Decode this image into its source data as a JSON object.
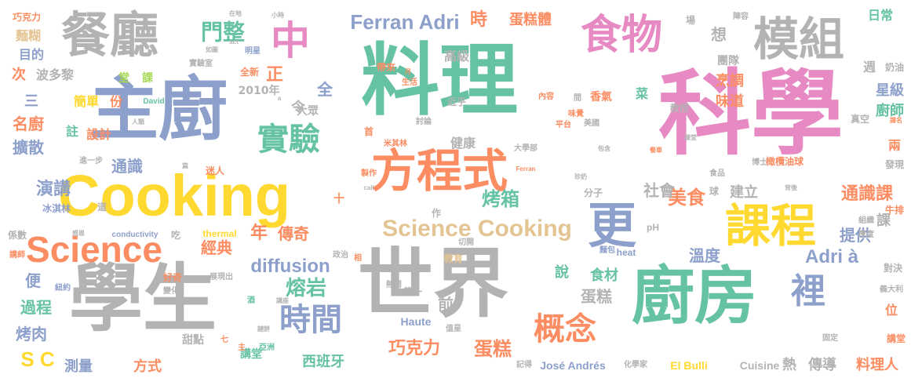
{
  "palette": {
    "green": "#66c2a5",
    "orange": "#fc8d62",
    "blue": "#8da0cb",
    "pink": "#e78ac3",
    "lime": "#a6d854",
    "yellow": "#ffd92f",
    "tan": "#e5c494",
    "gray": "#b3b3b3"
  },
  "words": [
    {
      "text": "料理",
      "color": "#66c2a5",
      "size": 100,
      "weight": 10
    },
    {
      "text": "科學",
      "color": "#e78ac3",
      "size": 118,
      "weight": 10
    },
    {
      "text": "主廚",
      "color": "#8da0cb",
      "size": 88,
      "weight": 9
    },
    {
      "text": "世界",
      "color": "#b3b3b3",
      "size": 96,
      "weight": 9
    },
    {
      "text": "學生",
      "color": "#b3b3b3",
      "size": 94,
      "weight": 9
    },
    {
      "text": "Cooking",
      "color": "#ffd92f",
      "size": 74,
      "weight": 8
    },
    {
      "text": "廚房",
      "color": "#66c2a5",
      "size": 80,
      "weight": 8
    },
    {
      "text": "餐廳",
      "color": "#b3b3b3",
      "size": 62,
      "weight": 7
    },
    {
      "text": "模組",
      "color": "#b3b3b3",
      "size": 58,
      "weight": 7
    },
    {
      "text": "方程式",
      "color": "#fc8d62",
      "size": 58,
      "weight": 7
    },
    {
      "text": "課程",
      "color": "#ffd92f",
      "size": 58,
      "weight": 7
    },
    {
      "text": "食物",
      "color": "#e78ac3",
      "size": 52,
      "weight": 6
    },
    {
      "text": "更",
      "color": "#8da0cb",
      "size": 62,
      "weight": 6
    },
    {
      "text": "中",
      "color": "#e78ac3",
      "size": 50,
      "weight": 6
    },
    {
      "text": "Science",
      "color": "#fc8d62",
      "size": 46,
      "weight": 6
    },
    {
      "text": "實驗",
      "color": "#66c2a5",
      "size": 40,
      "weight": 5
    },
    {
      "text": "時間",
      "color": "#8da0cb",
      "size": 40,
      "weight": 5
    },
    {
      "text": "概念",
      "color": "#fc8d62",
      "size": 40,
      "weight": 5
    },
    {
      "text": "裡",
      "color": "#8da0cb",
      "size": 44,
      "weight": 5
    },
    {
      "text": "Ferran Adri",
      "color": "#8da0cb",
      "size": 26,
      "weight": 4
    },
    {
      "text": "Science Cooking",
      "color": "#e5c494",
      "size": 30,
      "weight": 4
    },
    {
      "text": "門",
      "color": "#66c2a5",
      "size": 28,
      "weight": 4
    },
    {
      "text": "整",
      "color": "#66c2a5",
      "size": 28,
      "weight": 4
    },
    {
      "text": "烤箱",
      "color": "#66c2a5",
      "size": 24,
      "weight": 3
    },
    {
      "text": "diffusion",
      "color": "#8da0cb",
      "size": 24,
      "weight": 3
    },
    {
      "text": "熔岩",
      "color": "#66c2a5",
      "size": 26,
      "weight": 3
    },
    {
      "text": "巧克力",
      "color": "#fc8d62",
      "size": 22,
      "weight": 3
    },
    {
      "text": "蛋糕",
      "color": "#fc8d62",
      "size": 24,
      "weight": 3
    },
    {
      "text": "美食",
      "color": "#fc8d62",
      "size": 24,
      "weight": 3
    },
    {
      "text": "Adri à",
      "color": "#8da0cb",
      "size": 24,
      "weight": 3
    },
    {
      "text": "S C",
      "color": "#ffd92f",
      "size": 26,
      "weight": 3
    },
    {
      "text": "通識課",
      "color": "#fc8d62",
      "size": 22,
      "weight": 3
    },
    {
      "text": "時",
      "color": "#fc8d62",
      "size": 22,
      "weight": 3
    },
    {
      "text": "蛋糕體",
      "color": "#fc8d62",
      "size": 18,
      "weight": 2
    },
    {
      "text": "演講",
      "color": "#8da0cb",
      "size": 22,
      "weight": 2
    },
    {
      "text": "通識",
      "color": "#8da0cb",
      "size": 20,
      "weight": 2
    },
    {
      "text": "社會",
      "color": "#b3b3b3",
      "size": 20,
      "weight": 2
    },
    {
      "text": "年",
      "color": "#fc8d62",
      "size": 22,
      "weight": 2
    },
    {
      "text": "傳奇",
      "color": "#fc8d62",
      "size": 20,
      "weight": 2
    },
    {
      "text": "經典",
      "color": "#fc8d62",
      "size": 20,
      "weight": 2
    },
    {
      "text": "溫度",
      "color": "#8da0cb",
      "size": 20,
      "weight": 2
    },
    {
      "text": "提供",
      "color": "#8da0cb",
      "size": 20,
      "weight": 2
    },
    {
      "text": "食材",
      "color": "#66c2a5",
      "size": 18,
      "weight": 2
    },
    {
      "text": "說",
      "color": "#66c2a5",
      "size": 18,
      "weight": 2
    },
    {
      "text": "蛋糕",
      "color": "#b3b3b3",
      "size": 20,
      "weight": 2
    },
    {
      "text": "前",
      "color": "#b3b3b3",
      "size": 20,
      "weight": 2
    },
    {
      "text": "西班牙",
      "color": "#66c2a5",
      "size": 18,
      "weight": 2
    },
    {
      "text": "José Andrés",
      "color": "#8da0cb",
      "size": 14,
      "weight": 1
    },
    {
      "text": "El Bulli",
      "color": "#ffd92f",
      "size": 14,
      "weight": 1
    },
    {
      "text": "Cuisine",
      "color": "#b3b3b3",
      "size": 14,
      "weight": 1
    },
    {
      "text": "Haute",
      "color": "#8da0cb",
      "size": 14,
      "weight": 1
    },
    {
      "text": "傳導",
      "color": "#b3b3b3",
      "size": 18,
      "weight": 2
    },
    {
      "text": "料理人",
      "color": "#fc8d62",
      "size": 18,
      "weight": 2
    },
    {
      "text": "熱",
      "color": "#b3b3b3",
      "size": 18,
      "weight": 2
    },
    {
      "text": "講堂",
      "color": "#66c2a5",
      "size": 14,
      "weight": 1
    },
    {
      "text": "甜點",
      "color": "#b3b3b3",
      "size": 14,
      "weight": 1
    },
    {
      "text": "方式",
      "color": "#fc8d62",
      "size": 18,
      "weight": 2
    },
    {
      "text": "測量",
      "color": "#8da0cb",
      "size": 18,
      "weight": 2
    },
    {
      "text": "過程",
      "color": "#66c2a5",
      "size": 20,
      "weight": 2
    },
    {
      "text": "烤肉",
      "color": "#8da0cb",
      "size": 20,
      "weight": 2
    },
    {
      "text": "便",
      "color": "#8da0cb",
      "size": 20,
      "weight": 2
    },
    {
      "text": "名廚",
      "color": "#fc8d62",
      "size": 20,
      "weight": 2
    },
    {
      "text": "擴散",
      "color": "#8da0cb",
      "size": 20,
      "weight": 2
    },
    {
      "text": "設計",
      "color": "#fc8d62",
      "size": 16,
      "weight": 2
    },
    {
      "text": "註",
      "color": "#66c2a5",
      "size": 16,
      "weight": 2
    },
    {
      "text": "三",
      "color": "#8da0cb",
      "size": 18,
      "weight": 2
    },
    {
      "text": "簡單",
      "color": "#ffd92f",
      "size": 16,
      "weight": 2
    },
    {
      "text": "份",
      "color": "#fc8d62",
      "size": 16,
      "weight": 2
    },
    {
      "text": "次",
      "color": "#fc8d62",
      "size": 18,
      "weight": 2
    },
    {
      "text": "波多黎",
      "color": "#b3b3b3",
      "size": 16,
      "weight": 2
    },
    {
      "text": "目的",
      "color": "#8da0cb",
      "size": 16,
      "weight": 2
    },
    {
      "text": "麵糊",
      "color": "#e5c494",
      "size": 16,
      "weight": 2
    },
    {
      "text": "巧克力",
      "color": "#fc8d62",
      "size": 12,
      "weight": 1
    },
    {
      "text": "堂",
      "color": "#a6d854",
      "size": 14,
      "weight": 1
    },
    {
      "text": "課",
      "color": "#a6d854",
      "size": 14,
      "weight": 1
    },
    {
      "text": "2010年",
      "color": "#b3b3b3",
      "size": 14,
      "weight": 1
    },
    {
      "text": "全新",
      "color": "#fc8d62",
      "size": 12,
      "weight": 1
    },
    {
      "text": "明星",
      "color": "#8da0cb",
      "size": 10,
      "weight": 1
    },
    {
      "text": "實驗室",
      "color": "#b3b3b3",
      "size": 10,
      "weight": 1
    },
    {
      "text": "正",
      "color": "#fc8d62",
      "size": 22,
      "weight": 2
    },
    {
      "text": "令",
      "color": "#b3b3b3",
      "size": 18,
      "weight": 2
    },
    {
      "text": "全",
      "color": "#8da0cb",
      "size": 20,
      "weight": 2
    },
    {
      "text": "大眾",
      "color": "#b3b3b3",
      "size": 14,
      "weight": 1
    },
    {
      "text": "高級",
      "color": "#b3b3b3",
      "size": 16,
      "weight": 2
    },
    {
      "text": "健康",
      "color": "#b3b3b3",
      "size": 16,
      "weight": 2
    },
    {
      "text": "香氣",
      "color": "#fc8d62",
      "size": 14,
      "weight": 1
    },
    {
      "text": "菜",
      "color": "#66c2a5",
      "size": 16,
      "weight": 2
    },
    {
      "text": "想",
      "color": "#b3b3b3",
      "size": 20,
      "weight": 2
    },
    {
      "text": "烹調",
      "color": "#fc8d62",
      "size": 18,
      "weight": 2
    },
    {
      "text": "味道",
      "color": "#fc8d62",
      "size": 18,
      "weight": 2
    },
    {
      "text": "團隊",
      "color": "#b3b3b3",
      "size": 14,
      "weight": 1
    },
    {
      "text": "星級",
      "color": "#8da0cb",
      "size": 18,
      "weight": 2
    },
    {
      "text": "廚師",
      "color": "#66c2a5",
      "size": 18,
      "weight": 2
    },
    {
      "text": "日常",
      "color": "#66c2a5",
      "size": 16,
      "weight": 2
    },
    {
      "text": "週",
      "color": "#b3b3b3",
      "size": 16,
      "weight": 2
    },
    {
      "text": "奶油",
      "color": "#b3b3b3",
      "size": 12,
      "weight": 1
    },
    {
      "text": "真空",
      "color": "#b3b3b3",
      "size": 12,
      "weight": 1
    },
    {
      "text": "兩",
      "color": "#fc8d62",
      "size": 16,
      "weight": 2
    },
    {
      "text": "發現",
      "color": "#b3b3b3",
      "size": 12,
      "weight": 1
    },
    {
      "text": "建立",
      "color": "#b3b3b3",
      "size": 18,
      "weight": 2
    },
    {
      "text": "課",
      "color": "#b3b3b3",
      "size": 18,
      "weight": 2
    },
    {
      "text": "牛排",
      "color": "#fc8d62",
      "size": 12,
      "weight": 1
    },
    {
      "text": "橄欖油球",
      "color": "#fc8d62",
      "size": 12,
      "weight": 1
    },
    {
      "text": "對決",
      "color": "#b3b3b3",
      "size": 12,
      "weight": 1
    },
    {
      "text": "位",
      "color": "#fc8d62",
      "size": 16,
      "weight": 2
    },
    {
      "text": "講堂",
      "color": "#fc8d62",
      "size": 12,
      "weight": 1
    },
    {
      "text": "第一",
      "color": "#b3b3b3",
      "size": 12,
      "weight": 1
    },
    {
      "text": "pH",
      "color": "#b3b3b3",
      "size": 12,
      "weight": 1
    },
    {
      "text": "麵包",
      "color": "#8da0cb",
      "size": 10,
      "weight": 1
    },
    {
      "text": "分子",
      "color": "#b3b3b3",
      "size": 12,
      "weight": 1
    },
    {
      "text": "教育",
      "color": "#e5c494",
      "size": 12,
      "weight": 1
    },
    {
      "text": "大學部",
      "color": "#b3b3b3",
      "size": 10,
      "weight": 1
    },
    {
      "text": "近乎",
      "color": "#b3b3b3",
      "size": 12,
      "weight": 1
    },
    {
      "text": "教授",
      "color": "#b3b3b3",
      "size": 12,
      "weight": 1
    },
    {
      "text": "博士",
      "color": "#b3b3b3",
      "size": 10,
      "weight": 1
    },
    {
      "text": "食品",
      "color": "#b3b3b3",
      "size": 10,
      "weight": 1
    },
    {
      "text": "討論",
      "color": "#b3b3b3",
      "size": 10,
      "weight": 1
    },
    {
      "text": "平台",
      "color": "#fc8d62",
      "size": 10,
      "weight": 1
    },
    {
      "text": "內容",
      "color": "#fc8d62",
      "size": 10,
      "weight": 1
    },
    {
      "text": "帶來",
      "color": "#fc8d62",
      "size": 12,
      "weight": 1
    },
    {
      "text": "生活",
      "color": "#fc8d62",
      "size": 10,
      "weight": 1
    },
    {
      "text": "米其林",
      "color": "#fc8d62",
      "size": 10,
      "weight": 1
    },
    {
      "text": "製作",
      "color": "#fc8d62",
      "size": 10,
      "weight": 1
    },
    {
      "text": "首",
      "color": "#fc8d62",
      "size": 12,
      "weight": 1
    },
    {
      "text": "作",
      "color": "#b3b3b3",
      "size": 12,
      "weight": 1
    },
    {
      "text": "切開",
      "color": "#b3b3b3",
      "size": 10,
      "weight": 1
    },
    {
      "text": "政治",
      "color": "#b3b3b3",
      "size": 10,
      "weight": 1
    },
    {
      "text": "熱鬧",
      "color": "#b3b3b3",
      "size": 10,
      "weight": 1
    },
    {
      "text": "相",
      "color": "#fc8d62",
      "size": 10,
      "weight": 1
    },
    {
      "text": "值星",
      "color": "#b3b3b3",
      "size": 10,
      "weight": 1
    },
    {
      "text": "記得",
      "color": "#b3b3b3",
      "size": 10,
      "weight": 1
    },
    {
      "text": "化學家",
      "color": "#b3b3b3",
      "size": 10,
      "weight": 1
    },
    {
      "text": "固定",
      "color": "#b3b3b3",
      "size": 10,
      "weight": 1
    },
    {
      "text": "美國",
      "color": "#b3b3b3",
      "size": 10,
      "weight": 1
    },
    {
      "text": "義大利",
      "color": "#b3b3b3",
      "size": 10,
      "weight": 1
    },
    {
      "text": "組織",
      "color": "#b3b3b3",
      "size": 10,
      "weight": 1
    },
    {
      "text": "厚度",
      "color": "#b3b3b3",
      "size": 10,
      "weight": 1
    },
    {
      "text": "heat",
      "color": "#8da0cb",
      "size": 12,
      "weight": 1
    },
    {
      "text": "conductivity",
      "color": "#8da0cb",
      "size": 10,
      "weight": 1
    },
    {
      "text": "thermal",
      "color": "#ffd92f",
      "size": 12,
      "weight": 1
    },
    {
      "text": "好奇",
      "color": "#fc8d62",
      "size": 12,
      "weight": 1
    },
    {
      "text": "變化",
      "color": "#b3b3b3",
      "size": 10,
      "weight": 1
    },
    {
      "text": "紐約",
      "color": "#8da0cb",
      "size": 10,
      "weight": 1
    },
    {
      "text": "係數",
      "color": "#b3b3b3",
      "size": 12,
      "weight": 1
    },
    {
      "text": "講師",
      "color": "#fc8d62",
      "size": 10,
      "weight": 1
    },
    {
      "text": "感恩",
      "color": "#b3b3b3",
      "size": 8,
      "weight": 1
    },
    {
      "text": "冰淇林",
      "color": "#8da0cb",
      "size": 12,
      "weight": 1
    },
    {
      "text": "進一步",
      "color": "#b3b3b3",
      "size": 10,
      "weight": 1
    },
    {
      "text": "迷人",
      "color": "#fc8d62",
      "size": 12,
      "weight": 1
    },
    {
      "text": "David",
      "color": "#66c2a5",
      "size": 10,
      "weight": 1
    },
    {
      "text": "人類",
      "color": "#b3b3b3",
      "size": 8,
      "weight": 1
    },
    {
      "text": "展現出",
      "color": "#b3b3b3",
      "size": 10,
      "weight": 1
    },
    {
      "text": "酒",
      "color": "#66c2a5",
      "size": 10,
      "weight": 1
    },
    {
      "text": "亞洲",
      "color": "#66c2a5",
      "size": 10,
      "weight": 1
    },
    {
      "text": "主",
      "color": "#fc8d62",
      "size": 10,
      "weight": 1
    },
    {
      "text": "七",
      "color": "#fc8d62",
      "size": 10,
      "weight": 1
    },
    {
      "text": "十",
      "color": "#fc8d62",
      "size": 14,
      "weight": 1
    },
    {
      "text": "吃",
      "color": "#b3b3b3",
      "size": 12,
      "weight": 1
    },
    {
      "text": "道",
      "color": "#b3b3b3",
      "size": 12,
      "weight": 1
    },
    {
      "text": "call",
      "color": "#b3b3b3",
      "size": 8,
      "weight": 1
    },
    {
      "text": "Ferran",
      "color": "#fc8d62",
      "size": 8,
      "weight": 1
    },
    {
      "text": "球",
      "color": "#b3b3b3",
      "size": 12,
      "weight": 1
    },
    {
      "text": "包含",
      "color": "#b3b3b3",
      "size": 8,
      "weight": 1
    },
    {
      "text": "珍奶",
      "color": "#b3b3b3",
      "size": 8,
      "weight": 1
    },
    {
      "text": "背後",
      "color": "#b3b3b3",
      "size": 8,
      "weight": 1
    },
    {
      "text": "講座",
      "color": "#b3b3b3",
      "size": 8,
      "weight": 1
    },
    {
      "text": "課堂",
      "color": "#b3b3b3",
      "size": 8,
      "weight": 1
    },
    {
      "text": "餐車",
      "color": "#fc8d62",
      "size": 8,
      "weight": 1
    },
    {
      "text": "陣容",
      "color": "#b3b3b3",
      "size": 10,
      "weight": 1
    },
    {
      "text": "場",
      "color": "#b3b3b3",
      "size": 12,
      "weight": 1
    },
    {
      "text": "在地",
      "color": "#b3b3b3",
      "size": 8,
      "weight": 1
    },
    {
      "text": "小時",
      "color": "#b3b3b3",
      "size": 8,
      "weight": 1
    },
    {
      "text": "act",
      "color": "#b3b3b3",
      "size": 8,
      "weight": 1
    },
    {
      "text": "如圖",
      "color": "#b3b3b3",
      "size": 8,
      "weight": 1
    },
    {
      "text": "月",
      "color": "#fc8d62",
      "size": 8,
      "weight": 1
    },
    {
      "text": "a",
      "color": "#b3b3b3",
      "size": 8,
      "weight": 1
    },
    {
      "text": "鏈餅",
      "color": "#b3b3b3",
      "size": 8,
      "weight": 1
    },
    {
      "text": "味覺",
      "color": "#fc8d62",
      "size": 10,
      "weight": 1
    },
    {
      "text": "間",
      "color": "#b3b3b3",
      "size": 10,
      "weight": 1
    },
    {
      "text": "課名",
      "color": "#fc8d62",
      "size": 8,
      "weight": 1
    },
    {
      "text": "篇",
      "color": "#b3b3b3",
      "size": 8,
      "weight": 1
    }
  ]
}
